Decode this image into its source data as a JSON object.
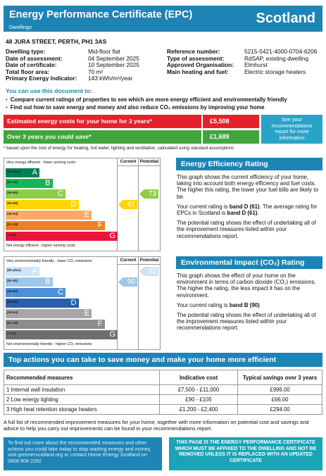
{
  "header": {
    "title": "Energy Performance Certificate (EPC)",
    "subtitle": "Dwellings",
    "region": "Scotland"
  },
  "address": "48 JURA STREET, PERTH, PH1 3AS",
  "details": {
    "left": [
      [
        "Dwelling type:",
        "Mid-floor flat"
      ],
      [
        "Date of assessment:",
        "04 September 2025"
      ],
      [
        "Date of certificate:",
        "10 September 2025"
      ],
      [
        "Total floor area:",
        "70 m²"
      ],
      [
        "Primary Energy Indicator:",
        "143 kWh/m²/year"
      ]
    ],
    "right": [
      [
        "Reference number:",
        "5215-5421-4000-0704-6206"
      ],
      [
        "Type of assessment:",
        "RdSAP, existing dwelling"
      ],
      [
        "Approved Organisation:",
        "Elmhurst"
      ],
      [
        "Main heating and fuel:",
        "Electric storage heaters"
      ]
    ]
  },
  "uses": {
    "heading": "You can use this document to:",
    "items": [
      "Compare current ratings of properties to see which are more energy efficient and environmentally friendly",
      "Find out how to save energy and money and also reduce CO₂ emissions by improving your home"
    ]
  },
  "costs": {
    "rows": [
      [
        "Estimated energy costs for your home for 3 years*",
        "£5,508"
      ],
      [
        "Over 3 years you could save*",
        "£1,689"
      ]
    ],
    "side_note": "See your recommendations report for more information",
    "footnote": "* based upon the cost of energy for heating, hot water, lighting and ventilation, calculated using standard assumptions"
  },
  "energy_chart": {
    "top_label": "Very energy efficient - lower running costs",
    "bottom_label": "Not energy efficient - higher running costs",
    "columns": [
      "Current",
      "Potential"
    ],
    "bands": [
      {
        "range": "(92 plus)",
        "letter": "A",
        "color": "#008054"
      },
      {
        "range": "(81-91)",
        "letter": "B",
        "color": "#19b459"
      },
      {
        "range": "(69-80)",
        "letter": "C",
        "color": "#8dce46"
      },
      {
        "range": "(55-68)",
        "letter": "D",
        "color": "#ffd500"
      },
      {
        "range": "(39-54)",
        "letter": "E",
        "color": "#fcaa65"
      },
      {
        "range": "(21-38)",
        "letter": "F",
        "color": "#ef8023"
      },
      {
        "range": "(1-20)",
        "letter": "G",
        "color": "#e9153b"
      }
    ],
    "current": 61,
    "potential": 73
  },
  "energy_text": {
    "heading": "Energy Efficiency Rating",
    "paragraphs": [
      [
        "This graph shows the current efficiency of your home, taking into account both energy efficiency and fuel costs. The higher this rating, the lower your fuel bills are likely to be."
      ],
      [
        "Your current rating is ",
        "band D (61)",
        ". The average rating for EPCs in Scotland is ",
        "band D (61)",
        "."
      ],
      [
        "The potential rating shows the effect of undertaking all of the improvement measures listed within your recommendations report."
      ]
    ]
  },
  "env_chart": {
    "top_label": "Very environmentally friendly - lower CO₂ emissions",
    "bottom_label": "Not environmentally friendly - higher CO₂ emissions",
    "columns": [
      "Current",
      "Potential"
    ],
    "bands": [
      {
        "range": "(92 plus)",
        "letter": "A",
        "color": "#cfe4f7"
      },
      {
        "range": "(81-91)",
        "letter": "B",
        "color": "#9fc6ec"
      },
      {
        "range": "(69-80)",
        "letter": "C",
        "color": "#4f8fd6"
      },
      {
        "range": "(55-68)",
        "letter": "D",
        "color": "#2a5fae"
      },
      {
        "range": "(39-54)",
        "letter": "E",
        "color": "#a6a6a6"
      },
      {
        "range": "(21-38)",
        "letter": "F",
        "color": "#8c8c8c"
      },
      {
        "range": "(1-20)",
        "letter": "G",
        "color": "#6e6e6e"
      }
    ],
    "current": 90,
    "potential": 93
  },
  "env_text": {
    "heading": "Environmental Impact (CO₂) Rating",
    "paragraphs": [
      [
        "This graph shows the effect of your home on the environment in terms of carbon dioxide (CO₂) emissions. The higher the rating, the less impact it has on the environment."
      ],
      [
        "Your current rating is ",
        "band B (90)"
      ],
      [
        "The potential rating shows the effect of undertaking all of the improvement measures listed within your recommendations report."
      ]
    ]
  },
  "actions": {
    "heading": "Top actions you can take to save money and make your home more efficient",
    "columns": [
      "Recommended measures",
      "Indicative cost",
      "Typical savings over 3 years"
    ],
    "rows": [
      [
        "1 Internal wall insulation",
        "£7,500 - £11,000",
        "£996.00"
      ],
      [
        "2 Low energy lighting",
        "£90 - £105",
        "£66.00"
      ],
      [
        "3 High heat retention storage heaters",
        "£1,200 - £2,400",
        "£294.00"
      ]
    ]
  },
  "note": "A full list of recommended improvement measures for your home, together with more information on potential cost and savings and advice to help you carry out improvements can be found in your recommendations report.",
  "footer": {
    "left": "To find out more about the recommended measures and other actions you could take today to stop wasting energy and money, visit greenerscotland.org or contact Home Energy Scotland on 0808 808 2282",
    "right": "THIS PAGE IS THE ENERGY PERFORMANCE CERTIFICATE WHICH MUST BE AFFIXED TO THE DWELLING AND NOT BE REMOVED UNLESS IT IS REPLACED WITH AN UPDATED CERTIFICATE"
  }
}
